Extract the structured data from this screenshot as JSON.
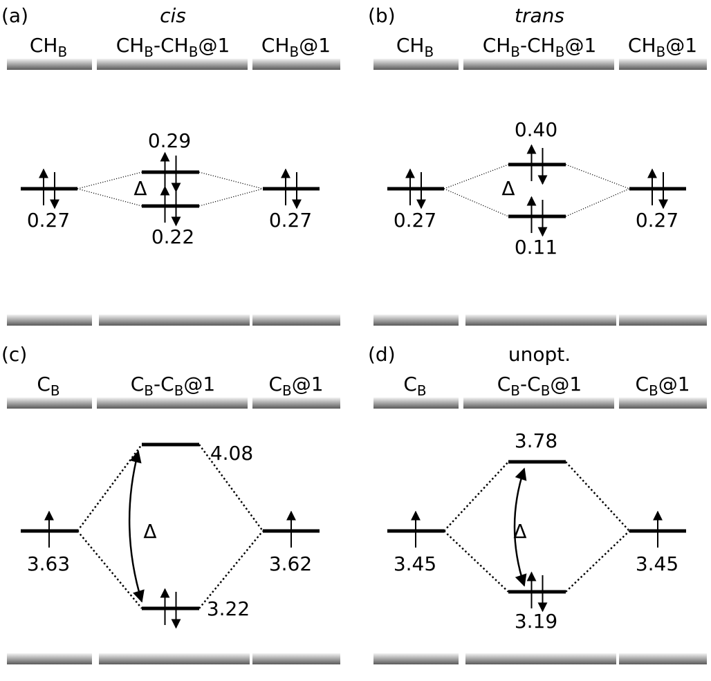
{
  "panels": [
    {
      "label": "(a)",
      "subtitle": "cis",
      "columns": [
        [
          "CH",
          "B"
        ],
        [
          "CH",
          "B",
          "-CH",
          "B",
          "@1"
        ],
        [
          "CH",
          "B",
          "@1"
        ]
      ],
      "delta": "Δ",
      "levels": [
        "0.27",
        "0.29",
        "0.22",
        "0.27"
      ]
    },
    {
      "label": "(b)",
      "subtitle": "trans",
      "columns": [
        [
          "CH",
          "B"
        ],
        [
          "CH",
          "B",
          "-CH",
          "B",
          "@1"
        ],
        [
          "CH",
          "B",
          "@1"
        ]
      ],
      "delta": "Δ",
      "levels": [
        "0.27",
        "0.40",
        "0.11",
        "0.27"
      ]
    },
    {
      "label": "(c)",
      "columns": [
        [
          "C",
          "B"
        ],
        [
          "C",
          "B",
          "-C",
          "B",
          "@1"
        ],
        [
          "C",
          "B",
          "@1"
        ]
      ],
      "delta": "Δ",
      "levels": [
        "3.63",
        "4.08",
        "3.22",
        "3.62"
      ]
    },
    {
      "label": "(d)",
      "subtitle": "unopt.",
      "columns": [
        [
          "C",
          "B"
        ],
        [
          "C",
          "B",
          "-C",
          "B",
          "@1"
        ],
        [
          "C",
          "B",
          "@1"
        ]
      ],
      "delta": "Δ",
      "levels": [
        "3.45",
        "3.78",
        "3.19",
        "3.45"
      ]
    }
  ]
}
